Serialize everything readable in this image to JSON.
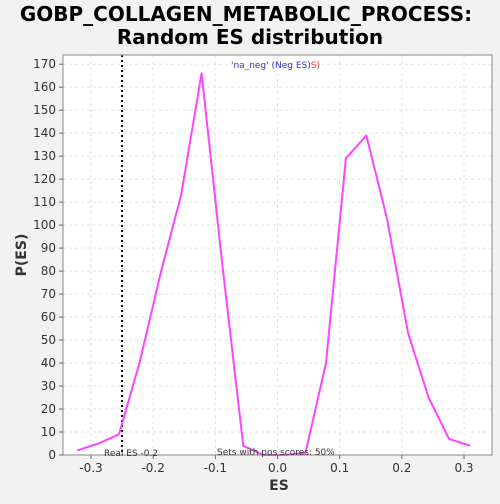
{
  "chart_data": {
    "type": "line",
    "title_line1": "GOBP_COLLAGEN_METABOLIC_PROCESS:",
    "title_line2": "Random ES distribution",
    "xlabel": "ES",
    "ylabel": "P(ES)",
    "xlim": [
      -0.345,
      0.345
    ],
    "ylim": [
      0,
      174
    ],
    "xticks": [
      -0.3,
      -0.2,
      -0.1,
      0.0,
      0.1,
      0.2,
      0.3
    ],
    "xtick_labels": [
      "-0.3",
      "-0.2",
      "-0.1",
      "0.0",
      "0.1",
      "0.2",
      "0.3"
    ],
    "yticks": [
      0,
      10,
      20,
      30,
      40,
      50,
      60,
      70,
      80,
      90,
      100,
      110,
      120,
      130,
      140,
      150,
      160,
      170
    ],
    "grid": true,
    "legend": {
      "prefix": "'na_neg' (Neg ES)",
      "suffix": "S)",
      "prefix_color": "#3333cc",
      "suffix_color": "#ff3333",
      "placement": "top-center"
    },
    "series": [
      {
        "color": "#ff44ff",
        "x": [
          -0.322,
          -0.288,
          -0.255,
          -0.222,
          -0.188,
          -0.155,
          -0.122,
          -0.088,
          -0.055,
          -0.022,
          0.012,
          0.045,
          0.078,
          0.11,
          0.143,
          0.176,
          0.21,
          0.243,
          0.276,
          0.31
        ],
        "y": [
          2,
          5,
          9,
          40,
          79,
          113,
          166,
          81,
          4,
          0,
          0,
          1,
          40,
          129,
          139,
          103,
          53,
          25,
          7,
          4
        ]
      }
    ],
    "real_es": {
      "value": -0.25,
      "label": "Real ES -0.2",
      "line_color": "#000000",
      "line_style": "dotted"
    },
    "annotation": "Sets with pos scores: 50%"
  }
}
